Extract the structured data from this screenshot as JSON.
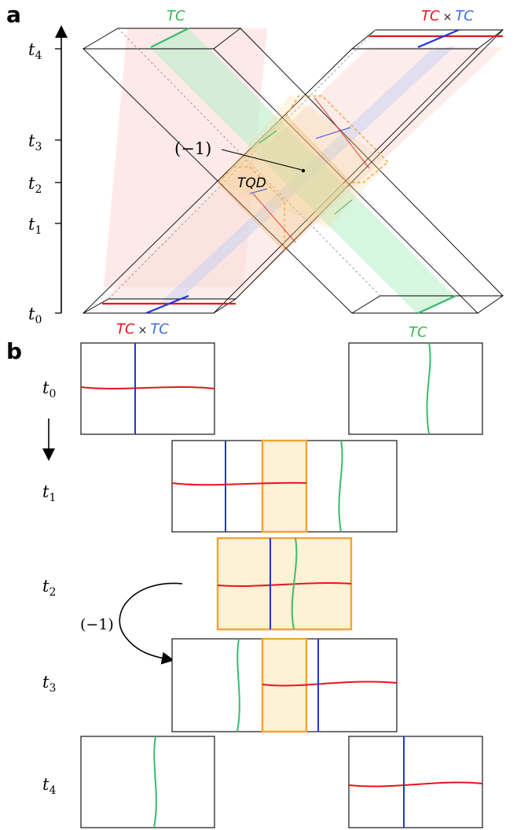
{
  "colors": {
    "red": "#e8141c",
    "blue": "#2233dd",
    "green": "#3dbb6c",
    "orange": "#f2a431",
    "text_red": "#e8141c",
    "text_blue": "#3a6fd8",
    "text_green": "#38b54a"
  },
  "panel_a": {
    "letter": "a",
    "time_ticks": [
      "t",
      "t",
      "t",
      "t",
      "t"
    ],
    "time_subs": [
      "4",
      "3",
      "2",
      "1",
      "0"
    ],
    "label_tc_top_left": "TC",
    "label_tcxtc_top_right": {
      "a": "TC",
      "x": "×",
      "b": "TC"
    },
    "label_tcxtc_bottom_left": {
      "a": "TC",
      "x": "×",
      "b": "TC"
    },
    "label_tc_bottom_right": "TC",
    "minus_one": "(−1)",
    "tqd": "TQD"
  },
  "panel_b": {
    "letter": "b",
    "time_ticks": [
      "t",
      "t",
      "t",
      "t",
      "t"
    ],
    "time_subs": [
      "0",
      "1",
      "2",
      "3",
      "4"
    ],
    "minus_one": "(−1)"
  }
}
